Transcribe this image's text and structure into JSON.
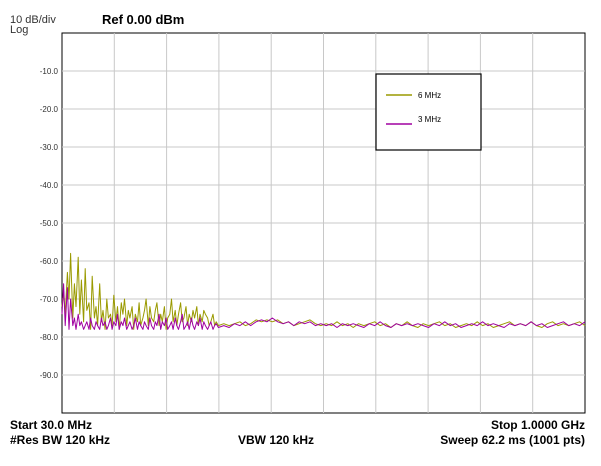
{
  "header": {
    "scale_label": "10 dB/div",
    "scale_mode": "Log",
    "reference_level": "Ref 0.00 dBm"
  },
  "footer": {
    "start": "Start 30.0 MHz",
    "stop": "Stop 1.0000 GHz",
    "rbw": "#Res BW 120 kHz",
    "vbw": "VBW 120 kHz",
    "sweep": "Sweep  62.2 ms (1001 pts)"
  },
  "chart_data": {
    "type": "line",
    "xlim": [
      30,
      1000
    ],
    "ylim": [
      -100,
      0
    ],
    "x_unit": "MHz",
    "y_unit": "dBm",
    "y_ticks": [
      "-10.0",
      "-20.0",
      "-30.0",
      "-40.0",
      "-50.0",
      "-60.0",
      "-70.0",
      "-80.0",
      "-90.0"
    ],
    "grid": true,
    "legend_position": "top-right",
    "series": [
      {
        "name": "6 MHz",
        "color": "#9a9a00",
        "x": [
          30,
          33,
          36,
          40,
          43,
          46,
          50,
          53,
          56,
          60,
          63,
          66,
          70,
          73,
          76,
          80,
          83,
          86,
          90,
          93,
          96,
          100,
          103,
          106,
          110,
          113,
          116,
          120,
          123,
          126,
          130,
          133,
          136,
          140,
          143,
          146,
          150,
          153,
          156,
          160,
          163,
          166,
          170,
          173,
          176,
          180,
          183,
          186,
          190,
          193,
          196,
          200,
          203,
          206,
          210,
          213,
          216,
          220,
          223,
          226,
          230,
          233,
          236,
          240,
          243,
          246,
          250,
          253,
          256,
          260,
          263,
          266,
          270,
          273,
          276,
          280,
          283,
          286,
          290,
          293,
          296,
          300,
          303,
          306,
          310,
          313,
          316,
          320,
          330,
          340,
          350,
          360,
          370,
          380,
          390,
          400,
          410,
          420,
          430,
          440,
          450,
          460,
          470,
          480,
          490,
          500,
          510,
          520,
          530,
          540,
          550,
          560,
          570,
          580,
          590,
          600,
          610,
          620,
          630,
          640,
          650,
          660,
          670,
          680,
          690,
          700,
          710,
          720,
          730,
          740,
          750,
          760,
          770,
          780,
          790,
          800,
          810,
          820,
          830,
          840,
          850,
          860,
          870,
          880,
          890,
          900,
          910,
          920,
          930,
          940,
          950,
          960,
          970,
          980,
          990,
          1000
        ],
        "y": [
          -72,
          -68,
          -74,
          -63,
          -70,
          -58,
          -75,
          -66,
          -72,
          -59,
          -74,
          -65,
          -76,
          -62,
          -73,
          -71,
          -78,
          -64,
          -75,
          -72,
          -77,
          -66,
          -76,
          -73,
          -78,
          -70,
          -75,
          -74,
          -77,
          -69,
          -76,
          -72,
          -78,
          -71,
          -74,
          -70,
          -77,
          -73,
          -75,
          -72,
          -78,
          -74,
          -76,
          -71,
          -77,
          -75,
          -73,
          -70,
          -77,
          -72,
          -75,
          -76,
          -73,
          -71,
          -77,
          -74,
          -76,
          -72,
          -78,
          -75,
          -74,
          -70,
          -76,
          -73,
          -77,
          -74,
          -71,
          -76,
          -75,
          -72,
          -77,
          -74,
          -76,
          -73,
          -75,
          -72,
          -77,
          -74,
          -76,
          -73,
          -74,
          -75,
          -77,
          -76,
          -74,
          -77,
          -76,
          -77,
          -76.5,
          -77,
          -76.5,
          -76,
          -77,
          -76.5,
          -75.5,
          -76,
          -75.5,
          -76,
          -75.5,
          -76.5,
          -76,
          -77,
          -76.5,
          -76,
          -75.5,
          -76.5,
          -77,
          -76.5,
          -77,
          -76,
          -77,
          -76.5,
          -77.5,
          -76.5,
          -77,
          -76.5,
          -76,
          -77,
          -76.5,
          -77.5,
          -76.5,
          -77,
          -76,
          -77,
          -77.5,
          -76.5,
          -77,
          -76.5,
          -76,
          -77,
          -76.5,
          -77.5,
          -77,
          -76.5,
          -77,
          -76,
          -77,
          -76.5,
          -77.5,
          -77,
          -76.5,
          -76,
          -77,
          -76.5,
          -77,
          -76,
          -77,
          -77.5,
          -76.5,
          -76,
          -77,
          -76.5,
          -77,
          -76.5,
          -76,
          -77
        ]
      },
      {
        "name": "3 MHz",
        "color": "#a000a0",
        "x": [
          30,
          33,
          36,
          40,
          43,
          46,
          50,
          53,
          56,
          60,
          63,
          66,
          70,
          73,
          76,
          80,
          83,
          86,
          90,
          93,
          96,
          100,
          103,
          106,
          110,
          113,
          116,
          120,
          123,
          126,
          130,
          133,
          136,
          140,
          143,
          146,
          150,
          153,
          156,
          160,
          163,
          166,
          170,
          173,
          176,
          180,
          183,
          186,
          190,
          193,
          196,
          200,
          203,
          206,
          210,
          213,
          216,
          220,
          223,
          226,
          230,
          233,
          236,
          240,
          243,
          246,
          250,
          253,
          256,
          260,
          263,
          266,
          270,
          273,
          276,
          280,
          283,
          286,
          290,
          293,
          296,
          300,
          303,
          306,
          310,
          313,
          316,
          320,
          330,
          340,
          350,
          360,
          370,
          380,
          390,
          400,
          410,
          420,
          430,
          440,
          450,
          460,
          470,
          480,
          490,
          500,
          510,
          520,
          530,
          540,
          550,
          560,
          570,
          580,
          590,
          600,
          610,
          620,
          630,
          640,
          650,
          660,
          670,
          680,
          690,
          700,
          710,
          720,
          730,
          740,
          750,
          760,
          770,
          780,
          790,
          800,
          810,
          820,
          830,
          840,
          850,
          860,
          870,
          880,
          890,
          900,
          910,
          920,
          930,
          940,
          950,
          960,
          970,
          980,
          990,
          1000
        ],
        "y": [
          -74,
          -66,
          -77,
          -67,
          -78,
          -70,
          -77,
          -75,
          -78,
          -74,
          -77,
          -76,
          -78,
          -77,
          -76,
          -78,
          -75,
          -77,
          -78,
          -76,
          -77,
          -78,
          -75,
          -77,
          -76,
          -78,
          -77,
          -75,
          -78,
          -76,
          -77,
          -74,
          -78,
          -76,
          -77,
          -75,
          -78,
          -77,
          -76,
          -78,
          -77,
          -75,
          -78,
          -76,
          -77,
          -78,
          -76,
          -77,
          -78,
          -75,
          -77,
          -78,
          -76,
          -77,
          -74,
          -78,
          -76,
          -77,
          -75,
          -78,
          -77,
          -76,
          -78,
          -75,
          -77,
          -78,
          -76,
          -74,
          -78,
          -77,
          -76,
          -78,
          -75,
          -77,
          -78,
          -76,
          -77,
          -75,
          -78,
          -76,
          -77,
          -78,
          -77,
          -76,
          -78,
          -77,
          -76.5,
          -77.5,
          -77,
          -77.5,
          -76.5,
          -77,
          -76,
          -77,
          -76,
          -75.5,
          -76,
          -75,
          -76,
          -76.5,
          -76,
          -77,
          -76,
          -76.5,
          -76,
          -77,
          -76.5,
          -77,
          -76.5,
          -77.5,
          -76.5,
          -77,
          -76.5,
          -77,
          -77.5,
          -76.5,
          -77,
          -76,
          -77,
          -77.5,
          -76.5,
          -77,
          -76.5,
          -77,
          -76.5,
          -77,
          -77.5,
          -76.5,
          -77,
          -76,
          -77,
          -76.5,
          -77.5,
          -77,
          -76.5,
          -77,
          -76,
          -77,
          -76.5,
          -77,
          -77.5,
          -76.5,
          -77,
          -76.5,
          -77,
          -76,
          -77,
          -76.5,
          -77.5,
          -77,
          -76.5,
          -76,
          -77,
          -76.5,
          -77,
          -76
        ]
      }
    ]
  }
}
